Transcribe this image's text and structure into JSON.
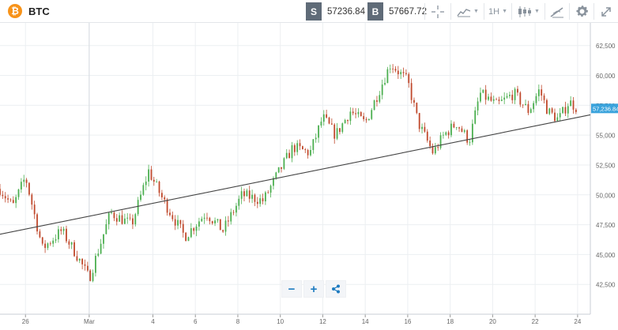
{
  "header": {
    "coin_glyph": "₿",
    "symbol": "BTC",
    "sell_tag": "S",
    "sell_price": "57236.84",
    "buy_tag": "B",
    "buy_price": "57667.72",
    "timeframe": "1H"
  },
  "toolbar_icons": [
    "crosshair-icon",
    "chart-type-icon",
    "timeframe-dropdown",
    "candlestick-icon",
    "draw-tool-icon",
    "gear-icon",
    "expand-icon"
  ],
  "colors": {
    "up": "#4caf50",
    "down": "#c0492c",
    "grid": "#eceff2",
    "axis_text": "#666666",
    "last_price_bg": "#3aa3dc",
    "trendline": "#444444",
    "accent": "#1d7bc0"
  },
  "chart_data": {
    "type": "candlestick",
    "symbol": "BTC",
    "timeframe": "1H",
    "last_price_label": "57,236.84",
    "last_price": 57236.84,
    "y_ticks": [
      "62,500",
      "60,000",
      "57,500",
      "55,000",
      "52,500",
      "50,000",
      "47,500",
      "45,000",
      "42,500"
    ],
    "y_tick_values": [
      62500,
      60000,
      57500,
      55000,
      52500,
      50000,
      47500,
      45000,
      42500
    ],
    "ylim": [
      40000,
      64400
    ],
    "x_ticks": [
      "26",
      "Mar",
      "4",
      "6",
      "8",
      "10",
      "12",
      "14",
      "16",
      "18",
      "20",
      "22",
      "24"
    ],
    "x_tick_days": [
      -3,
      0,
      3,
      5,
      7,
      9,
      11,
      13,
      15,
      17,
      19,
      21,
      23
    ],
    "x_day_range": [
      -4.2,
      23.6
    ],
    "vertical_marker_day": 0,
    "key_points": [
      {
        "day": -4.2,
        "price": 50500
      },
      {
        "day": -3.6,
        "price": 49000
      },
      {
        "day": -3.0,
        "price": 51500
      },
      {
        "day": -2.2,
        "price": 45500
      },
      {
        "day": -1.3,
        "price": 47000
      },
      {
        "day": -0.6,
        "price": 45000
      },
      {
        "day": 0.0,
        "price": 43000
      },
      {
        "day": 1.0,
        "price": 48500
      },
      {
        "day": 2.0,
        "price": 47500
      },
      {
        "day": 2.8,
        "price": 52000
      },
      {
        "day": 3.5,
        "price": 49500
      },
      {
        "day": 4.5,
        "price": 46500
      },
      {
        "day": 5.5,
        "price": 48500
      },
      {
        "day": 6.3,
        "price": 47000
      },
      {
        "day": 7.2,
        "price": 50000
      },
      {
        "day": 8.2,
        "price": 49500
      },
      {
        "day": 8.8,
        "price": 51500
      },
      {
        "day": 9.6,
        "price": 54000
      },
      {
        "day": 10.4,
        "price": 53500
      },
      {
        "day": 11.0,
        "price": 56500
      },
      {
        "day": 11.6,
        "price": 55000
      },
      {
        "day": 12.3,
        "price": 57000
      },
      {
        "day": 13.0,
        "price": 56000
      },
      {
        "day": 13.6,
        "price": 58500
      },
      {
        "day": 14.2,
        "price": 61000
      },
      {
        "day": 15.0,
        "price": 59500
      },
      {
        "day": 15.5,
        "price": 56000
      },
      {
        "day": 16.2,
        "price": 53500
      },
      {
        "day": 16.7,
        "price": 55000
      },
      {
        "day": 17.3,
        "price": 56000
      },
      {
        "day": 17.9,
        "price": 54500
      },
      {
        "day": 18.4,
        "price": 58500
      },
      {
        "day": 19.2,
        "price": 57500
      },
      {
        "day": 20.0,
        "price": 58500
      },
      {
        "day": 20.7,
        "price": 57000
      },
      {
        "day": 21.2,
        "price": 58800
      },
      {
        "day": 21.6,
        "price": 57000
      },
      {
        "day": 22.1,
        "price": 56300
      },
      {
        "day": 22.6,
        "price": 57800
      },
      {
        "day": 23.0,
        "price": 57240
      }
    ],
    "trendline": [
      {
        "day": -4.2,
        "price": 46700
      },
      {
        "day": 23.6,
        "price": 56700
      }
    ]
  },
  "zoom": {
    "minus": "−",
    "plus": "+"
  }
}
